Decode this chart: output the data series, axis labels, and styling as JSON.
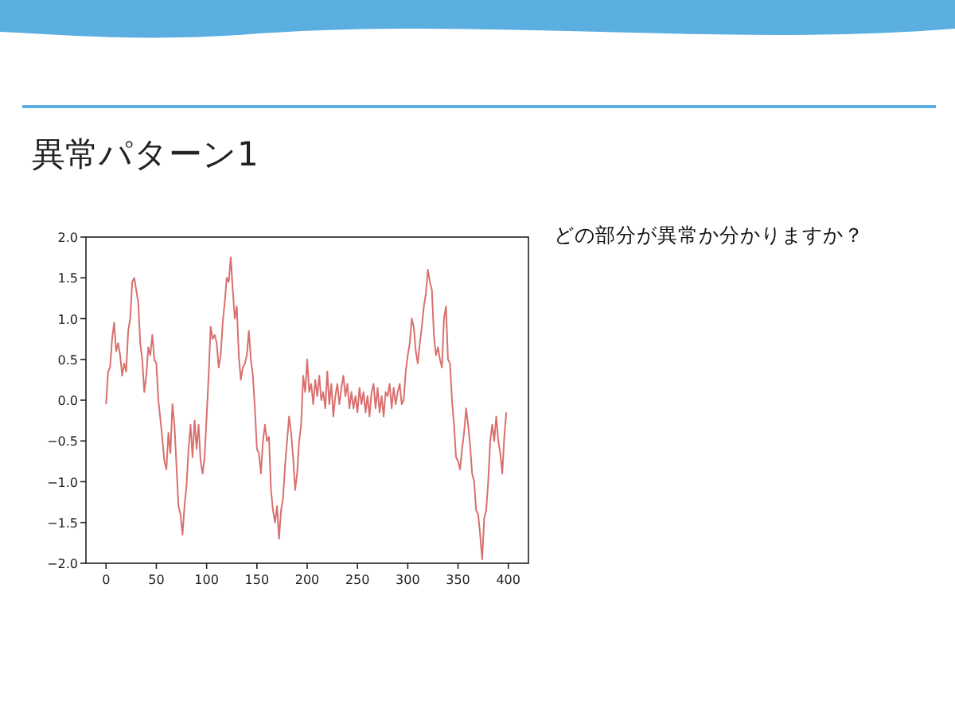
{
  "chart_data": {
    "type": "line",
    "title": "異常パターン1",
    "annotations": [
      "どの部分が異常か分かりますか？"
    ],
    "x": [
      0,
      2,
      4,
      6,
      8,
      10,
      12,
      14,
      16,
      18,
      20,
      22,
      24,
      26,
      28,
      30,
      32,
      34,
      36,
      38,
      40,
      42,
      44,
      46,
      48,
      50,
      52,
      55,
      58,
      60,
      62,
      64,
      66,
      68,
      70,
      72,
      74,
      76,
      78,
      80,
      82,
      84,
      86,
      88,
      90,
      92,
      94,
      96,
      98,
      100,
      102,
      104,
      106,
      108,
      110,
      112,
      114,
      116,
      118,
      120,
      122,
      124,
      126,
      128,
      130,
      132,
      134,
      136,
      138,
      140,
      142,
      144,
      146,
      148,
      150,
      152,
      154,
      156,
      158,
      160,
      162,
      164,
      166,
      168,
      170,
      172,
      174,
      176,
      178,
      180,
      182,
      184,
      186,
      188,
      190,
      192,
      194,
      196,
      198,
      200,
      202,
      204,
      206,
      208,
      210,
      212,
      214,
      216,
      218,
      220,
      222,
      224,
      226,
      228,
      230,
      232,
      234,
      236,
      238,
      240,
      242,
      244,
      246,
      248,
      250,
      252,
      254,
      256,
      258,
      260,
      262,
      264,
      266,
      268,
      270,
      272,
      274,
      276,
      278,
      280,
      282,
      284,
      286,
      288,
      290,
      292,
      294,
      296,
      298,
      300,
      302,
      304,
      306,
      308,
      310,
      312,
      314,
      316,
      318,
      320,
      322,
      324,
      326,
      328,
      330,
      332,
      334,
      336,
      338,
      340,
      342,
      344,
      346,
      348,
      350,
      352,
      354,
      356,
      358,
      360,
      362,
      364,
      366,
      368,
      370,
      372,
      374,
      376,
      378,
      380,
      382,
      384,
      386,
      388,
      390,
      392,
      394,
      396,
      398
    ],
    "series": [
      {
        "color": "#d9706e",
        "values": [
          -0.05,
          0.35,
          0.4,
          0.75,
          0.95,
          0.6,
          0.7,
          0.55,
          0.3,
          0.45,
          0.35,
          0.85,
          1.0,
          1.45,
          1.5,
          1.35,
          1.2,
          0.7,
          0.5,
          0.1,
          0.3,
          0.65,
          0.55,
          0.8,
          0.5,
          0.45,
          0.0,
          -0.35,
          -0.75,
          -0.85,
          -0.4,
          -0.65,
          -0.05,
          -0.3,
          -0.8,
          -1.3,
          -1.4,
          -1.65,
          -1.3,
          -1.05,
          -0.6,
          -0.3,
          -0.7,
          -0.25,
          -0.6,
          -0.3,
          -0.75,
          -0.9,
          -0.7,
          -0.2,
          0.3,
          0.9,
          0.75,
          0.8,
          0.7,
          0.4,
          0.55,
          0.95,
          1.2,
          1.5,
          1.45,
          1.75,
          1.35,
          1.0,
          1.15,
          0.55,
          0.25,
          0.4,
          0.45,
          0.55,
          0.85,
          0.5,
          0.3,
          -0.1,
          -0.6,
          -0.65,
          -0.9,
          -0.5,
          -0.3,
          -0.5,
          -0.45,
          -1.1,
          -1.35,
          -1.5,
          -1.3,
          -1.7,
          -1.35,
          -1.2,
          -0.8,
          -0.5,
          -0.2,
          -0.4,
          -0.7,
          -1.1,
          -0.9,
          -0.5,
          -0.3,
          0.3,
          0.1,
          0.5,
          0.1,
          0.2,
          -0.05,
          0.25,
          0.05,
          0.3,
          0.0,
          0.1,
          -0.1,
          0.35,
          -0.05,
          0.2,
          -0.2,
          0.05,
          0.2,
          -0.05,
          0.15,
          0.3,
          0.05,
          0.2,
          -0.1,
          0.1,
          -0.1,
          0.05,
          -0.15,
          0.15,
          -0.05,
          0.1,
          -0.15,
          0.05,
          -0.2,
          0.1,
          0.2,
          -0.1,
          0.15,
          -0.15,
          0.05,
          -0.2,
          0.1,
          0.05,
          0.2,
          -0.1,
          0.15,
          -0.05,
          0.1,
          0.2,
          -0.05,
          0.0,
          0.35,
          0.55,
          0.7,
          1.0,
          0.9,
          0.6,
          0.45,
          0.7,
          0.9,
          1.15,
          1.3,
          1.6,
          1.45,
          1.35,
          0.8,
          0.55,
          0.65,
          0.5,
          0.4,
          1.0,
          1.15,
          0.5,
          0.45,
          0.0,
          -0.3,
          -0.7,
          -0.75,
          -0.85,
          -0.6,
          -0.4,
          -0.1,
          -0.3,
          -0.55,
          -0.9,
          -1.0,
          -1.35,
          -1.4,
          -1.65,
          -1.95,
          -1.45,
          -1.35,
          -1.0,
          -0.5,
          -0.3,
          -0.5,
          -0.2,
          -0.5,
          -0.65,
          -0.9,
          -0.45,
          -0.15
        ]
      }
    ],
    "xlim": [
      -20,
      420
    ],
    "ylim": [
      -2.0,
      2.0
    ],
    "xticks": [
      0,
      50,
      100,
      150,
      200,
      250,
      300,
      350,
      400
    ],
    "yticks": [
      {
        "value": -2.0,
        "label": "−2.0"
      },
      {
        "value": -1.5,
        "label": "−1.5"
      },
      {
        "value": -1.0,
        "label": "−1.0"
      },
      {
        "value": -0.5,
        "label": "−0.5"
      },
      {
        "value": 0.0,
        "label": "0.0"
      },
      {
        "value": 0.5,
        "label": "0.5"
      },
      {
        "value": 1.0,
        "label": "1.0"
      },
      {
        "value": 1.5,
        "label": "1.5"
      },
      {
        "value": 2.0,
        "label": "2.0"
      }
    ],
    "grid": false
  }
}
